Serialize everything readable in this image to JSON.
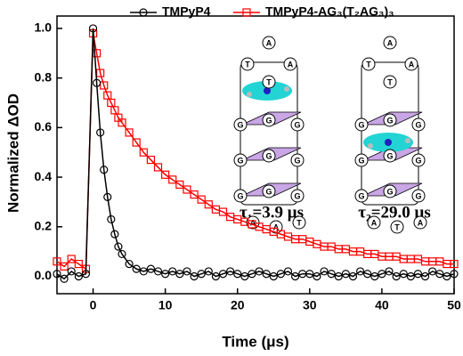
{
  "chart_data": {
    "type": "line",
    "x_label": "Time (μs)",
    "y_label": "Normalized ΔOD",
    "xlim": [
      -5,
      50
    ],
    "ylim": [
      -0.07,
      1.05
    ],
    "xticks": [
      0,
      10,
      20,
      30,
      40,
      50
    ],
    "yticks": [
      {
        "value": 0,
        "label": "0.0"
      },
      {
        "value": 0.2,
        "label": "0.2"
      },
      {
        "value": 0.4,
        "label": "0.4"
      },
      {
        "value": 0.6,
        "label": "0.6"
      },
      {
        "value": 0.8,
        "label": "0.8"
      },
      {
        "value": 1.0,
        "label": "1.0"
      }
    ],
    "x": [
      -5,
      -4,
      -3,
      -2,
      -1,
      0,
      0.5,
      1,
      1.5,
      2,
      2.5,
      3,
      3.5,
      4,
      5,
      6,
      7,
      8,
      9,
      10,
      11,
      12,
      13,
      14,
      15,
      16,
      17,
      18,
      19,
      20,
      21,
      22,
      23,
      24,
      25,
      26,
      27,
      28,
      29,
      30,
      31,
      32,
      33,
      34,
      35,
      36,
      37,
      38,
      39,
      40,
      41,
      42,
      43,
      44,
      45,
      46,
      47,
      48,
      49,
      50
    ],
    "series": [
      {
        "name": "TMPyP4",
        "color": "#000000",
        "marker": "circle",
        "values": [
          0.01,
          -0.01,
          0.02,
          0.0,
          0.01,
          1.0,
          0.78,
          0.58,
          0.43,
          0.32,
          0.23,
          0.17,
          0.12,
          0.09,
          0.05,
          0.03,
          0.02,
          0.03,
          0.02,
          0.01,
          0.02,
          0.01,
          0.02,
          0.0,
          0.01,
          0.02,
          0.0,
          0.01,
          0.02,
          0.01,
          0.0,
          0.01,
          0.02,
          0.01,
          0.0,
          0.01,
          0.02,
          0.0,
          0.01,
          0.01,
          0.0,
          0.02,
          0.01,
          0.0,
          0.01,
          0.0,
          0.02,
          0.01,
          0.0,
          0.01,
          0.02,
          0.0,
          0.01,
          0.0,
          0.01,
          0.0,
          0.02,
          0.01,
          0.0,
          0.01
        ]
      },
      {
        "name": "TMPyP4-AG₃(T₂AG₃)₃",
        "color": "#ff0000",
        "marker": "square",
        "values": [
          0.06,
          0.04,
          0.07,
          0.05,
          0.03,
          0.98,
          0.9,
          0.82,
          0.77,
          0.73,
          0.7,
          0.67,
          0.64,
          0.62,
          0.58,
          0.54,
          0.5,
          0.47,
          0.44,
          0.41,
          0.39,
          0.37,
          0.35,
          0.33,
          0.31,
          0.29,
          0.27,
          0.26,
          0.24,
          0.23,
          0.22,
          0.21,
          0.2,
          0.19,
          0.18,
          0.17,
          0.16,
          0.15,
          0.15,
          0.14,
          0.13,
          0.12,
          0.12,
          0.11,
          0.11,
          0.1,
          0.1,
          0.09,
          0.09,
          0.08,
          0.08,
          0.08,
          0.07,
          0.07,
          0.07,
          0.06,
          0.06,
          0.06,
          0.05,
          0.05
        ]
      }
    ],
    "annotations": [
      "τ₁=3.9 μs",
      "τ₂=29.0 μs"
    ],
    "insets": [
      {
        "labels": [
          "A",
          "T",
          "A",
          "T",
          "G",
          "G",
          "G",
          "G",
          "G",
          "G",
          "G",
          "G",
          "G",
          "A",
          "A",
          "T"
        ]
      },
      {
        "labels": [
          "A",
          "T",
          "A",
          "T",
          "G",
          "G",
          "G",
          "G",
          "G",
          "G",
          "G",
          "G",
          "G",
          "A",
          "T",
          "A"
        ]
      }
    ]
  }
}
